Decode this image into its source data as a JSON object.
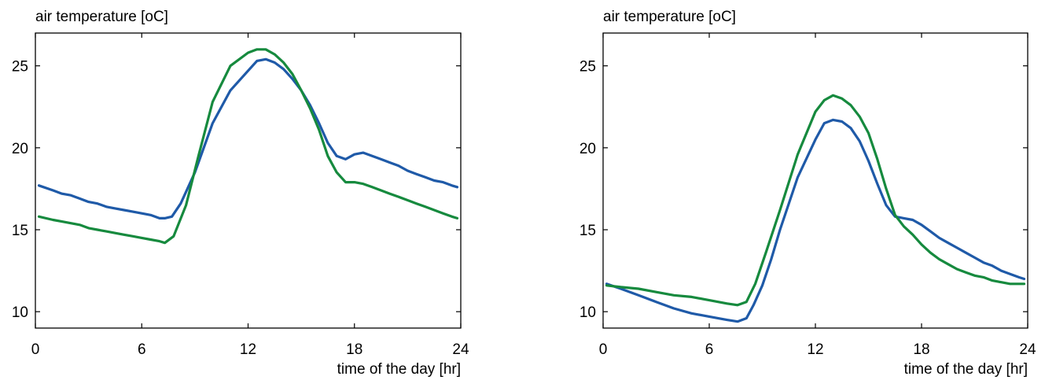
{
  "chart_data": [
    {
      "type": "line",
      "ylabel": "air temperature [oC]",
      "xlabel": "time of the day [hr]",
      "xlim": [
        0,
        24
      ],
      "ylim": [
        9,
        27
      ],
      "xticks": [
        0,
        6,
        12,
        18,
        24
      ],
      "yticks": [
        10,
        15,
        20,
        25
      ],
      "grid": false,
      "series": [
        {
          "color": "#1f5aa8",
          "x": [
            0.2,
            1.0,
            1.5,
            2.0,
            2.5,
            3.0,
            3.5,
            4.0,
            4.5,
            5.0,
            5.5,
            6.0,
            6.5,
            7.0,
            7.3,
            7.7,
            8.2,
            9.0,
            10.0,
            11.0,
            12.0,
            12.5,
            13.0,
            13.5,
            14.0,
            14.5,
            15.0,
            15.5,
            16.0,
            16.5,
            17.0,
            17.5,
            18.0,
            18.5,
            19.0,
            19.5,
            20.0,
            20.5,
            21.0,
            21.5,
            22.0,
            22.5,
            23.0,
            23.5,
            23.8
          ],
          "y": [
            17.7,
            17.4,
            17.2,
            17.1,
            16.9,
            16.7,
            16.6,
            16.4,
            16.3,
            16.2,
            16.1,
            16.0,
            15.9,
            15.7,
            15.7,
            15.8,
            16.6,
            18.5,
            21.5,
            23.5,
            24.7,
            25.3,
            25.4,
            25.2,
            24.8,
            24.2,
            23.5,
            22.6,
            21.5,
            20.3,
            19.5,
            19.3,
            19.6,
            19.7,
            19.5,
            19.3,
            19.1,
            18.9,
            18.6,
            18.4,
            18.2,
            18.0,
            17.9,
            17.7,
            17.6
          ]
        },
        {
          "color": "#168a3e",
          "x": [
            0.2,
            1.0,
            1.5,
            2.0,
            2.5,
            3.0,
            3.5,
            4.0,
            4.5,
            5.0,
            5.5,
            6.0,
            6.5,
            7.0,
            7.3,
            7.8,
            8.5,
            9.2,
            10.0,
            11.0,
            12.0,
            12.5,
            13.0,
            13.5,
            14.0,
            14.5,
            15.0,
            15.5,
            16.0,
            16.5,
            17.0,
            17.5,
            18.0,
            18.5,
            19.0,
            19.5,
            20.0,
            20.5,
            21.0,
            21.5,
            22.0,
            22.5,
            23.0,
            23.5,
            23.8
          ],
          "y": [
            15.8,
            15.6,
            15.5,
            15.4,
            15.3,
            15.1,
            15.0,
            14.9,
            14.8,
            14.7,
            14.6,
            14.5,
            14.4,
            14.3,
            14.2,
            14.6,
            16.5,
            19.5,
            22.8,
            25.0,
            25.8,
            26.0,
            26.0,
            25.7,
            25.2,
            24.5,
            23.5,
            22.4,
            21.1,
            19.5,
            18.5,
            17.9,
            17.9,
            17.8,
            17.6,
            17.4,
            17.2,
            17.0,
            16.8,
            16.6,
            16.4,
            16.2,
            16.0,
            15.8,
            15.7
          ]
        }
      ]
    },
    {
      "type": "line",
      "ylabel": "air temperature [oC]",
      "xlabel": "time of the day [hr]",
      "xlim": [
        0,
        24
      ],
      "ylim": [
        9,
        27
      ],
      "xticks": [
        0,
        6,
        12,
        18,
        24
      ],
      "yticks": [
        10,
        15,
        20,
        25
      ],
      "grid": false,
      "series": [
        {
          "color": "#1f5aa8",
          "x": [
            0.2,
            1.0,
            2.0,
            3.0,
            4.0,
            5.0,
            6.0,
            7.0,
            7.6,
            8.1,
            8.5,
            9.0,
            9.5,
            10.0,
            11.0,
            12.0,
            12.5,
            13.0,
            13.5,
            14.0,
            14.5,
            15.0,
            15.5,
            16.0,
            16.5,
            17.0,
            17.5,
            18.0,
            18.5,
            19.0,
            19.5,
            20.0,
            20.5,
            21.0,
            21.5,
            22.0,
            22.5,
            23.0,
            23.5,
            23.8
          ],
          "y": [
            11.7,
            11.4,
            11.0,
            10.6,
            10.2,
            9.9,
            9.7,
            9.5,
            9.4,
            9.6,
            10.4,
            11.6,
            13.2,
            15.0,
            18.2,
            20.5,
            21.5,
            21.7,
            21.6,
            21.2,
            20.4,
            19.2,
            17.8,
            16.5,
            15.8,
            15.7,
            15.6,
            15.3,
            14.9,
            14.5,
            14.2,
            13.9,
            13.6,
            13.3,
            13.0,
            12.8,
            12.5,
            12.3,
            12.1,
            12.0
          ]
        },
        {
          "color": "#168a3e",
          "x": [
            0.2,
            1.0,
            2.0,
            3.0,
            4.0,
            5.0,
            6.0,
            7.0,
            7.6,
            8.1,
            8.6,
            9.2,
            10.0,
            11.0,
            12.0,
            12.5,
            13.0,
            13.5,
            14.0,
            14.5,
            15.0,
            15.5,
            16.0,
            16.5,
            17.0,
            17.5,
            18.0,
            18.5,
            19.0,
            19.5,
            20.0,
            20.5,
            21.0,
            21.5,
            22.0,
            22.5,
            23.0,
            23.5,
            23.8
          ],
          "y": [
            11.6,
            11.5,
            11.4,
            11.2,
            11.0,
            10.9,
            10.7,
            10.5,
            10.4,
            10.6,
            11.7,
            13.6,
            16.2,
            19.6,
            22.2,
            22.9,
            23.2,
            23.0,
            22.6,
            21.9,
            20.9,
            19.3,
            17.5,
            15.9,
            15.2,
            14.7,
            14.1,
            13.6,
            13.2,
            12.9,
            12.6,
            12.4,
            12.2,
            12.1,
            11.9,
            11.8,
            11.7,
            11.7,
            11.7
          ]
        }
      ]
    }
  ]
}
